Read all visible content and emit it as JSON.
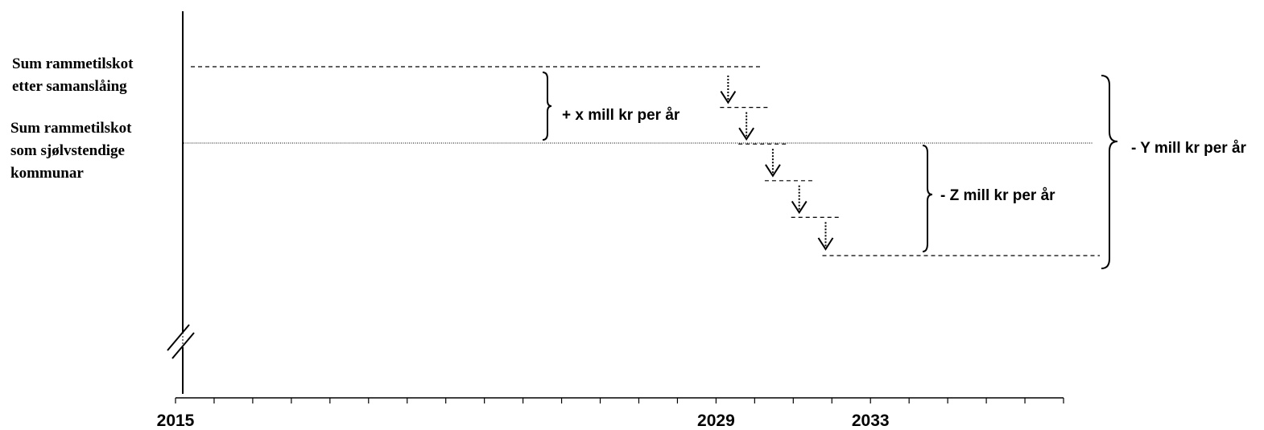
{
  "labels": {
    "merged_grant": [
      "Sum rammetilskot",
      "etter samanslåing"
    ],
    "standalone_grant": [
      "Sum rammetilskot",
      "som sjølvstendige",
      "kommunar"
    ]
  },
  "annotations": {
    "x_increase": "+ x mill kr per år",
    "z_decrease": "- Z mill kr per år",
    "y_decrease": "- Y mill kr per år"
  },
  "axis": {
    "start_year": 2015,
    "end_year": 2038,
    "tick_labels": [
      {
        "year": 2015,
        "label": "2015"
      },
      {
        "year": 2029,
        "label": "2029"
      },
      {
        "year": 2033,
        "label": "2033"
      }
    ]
  },
  "step_down": {
    "start_year": 2029.5,
    "steps": 5
  },
  "colors": {
    "ink": "#000000"
  }
}
